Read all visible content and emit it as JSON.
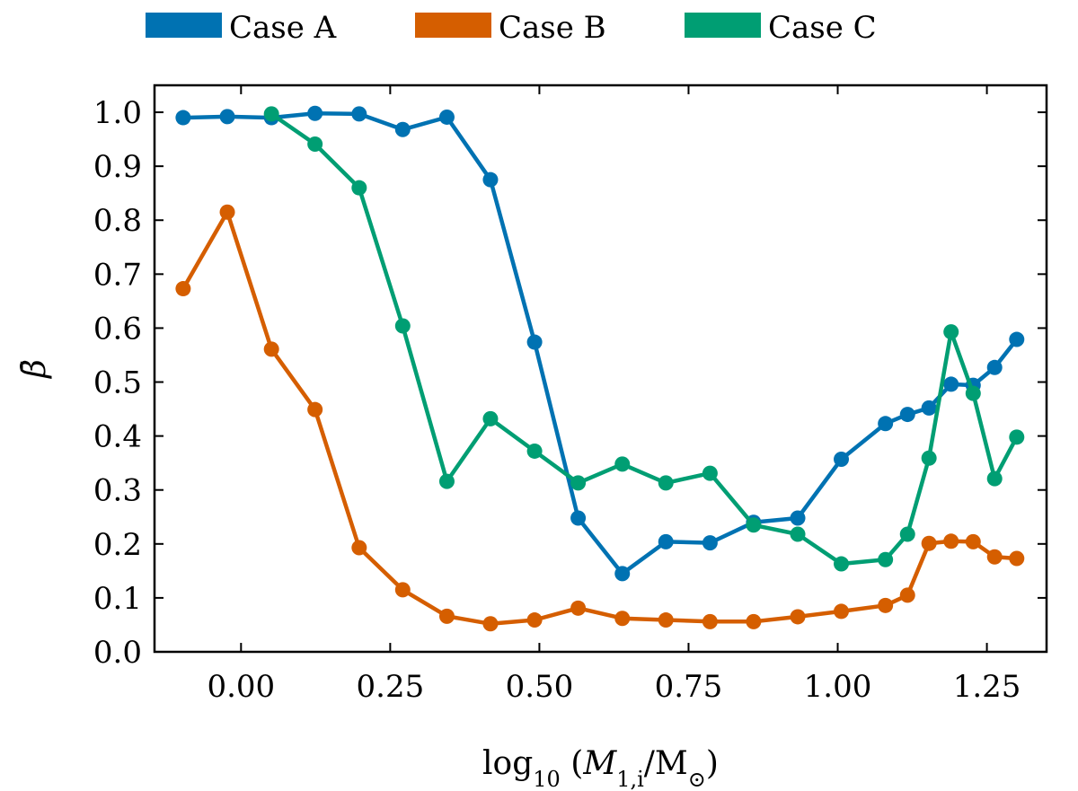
{
  "chart_data": {
    "type": "line",
    "title": "",
    "xlabel": "log10 (M1,i/M⊙)",
    "ylabel": "β̄",
    "xlim": [
      -0.145,
      1.35
    ],
    "ylim": [
      0.0,
      1.05
    ],
    "xticks": [
      0.0,
      0.25,
      0.5,
      0.75,
      1.0,
      1.25
    ],
    "xtick_labels": [
      "0.00",
      "0.25",
      "0.50",
      "0.75",
      "1.00",
      "1.25"
    ],
    "yticks": [
      0.0,
      0.1,
      0.2,
      0.3,
      0.4,
      0.5,
      0.6,
      0.7,
      0.8,
      0.9,
      1.0
    ],
    "ytick_labels": [
      "0.0",
      "0.1",
      "0.2",
      "0.3",
      "0.4",
      "0.5",
      "0.6",
      "0.7",
      "0.8",
      "0.9",
      "1.0"
    ],
    "grid": false,
    "legend": {
      "placement": "top-center-outside",
      "columns": 3
    },
    "series": [
      {
        "name": "Case A",
        "color": "#0072b2",
        "x": [
          -0.097,
          -0.023,
          0.051,
          0.124,
          0.198,
          0.271,
          0.345,
          0.418,
          0.492,
          0.565,
          0.639,
          0.712,
          0.786,
          0.859,
          0.933,
          1.006,
          1.08,
          1.117,
          1.153,
          1.19,
          1.227,
          1.263,
          1.3
        ],
        "y": [
          0.99,
          0.992,
          0.99,
          0.998,
          0.997,
          0.968,
          0.991,
          0.875,
          0.574,
          0.248,
          0.145,
          0.204,
          0.202,
          0.24,
          0.248,
          0.357,
          0.423,
          0.44,
          0.452,
          0.496,
          0.494,
          0.527,
          0.579
        ]
      },
      {
        "name": "Case B",
        "color": "#d55e00",
        "x": [
          -0.097,
          -0.023,
          0.051,
          0.124,
          0.198,
          0.271,
          0.345,
          0.418,
          0.492,
          0.565,
          0.639,
          0.712,
          0.786,
          0.859,
          0.933,
          1.006,
          1.08,
          1.117,
          1.153,
          1.19,
          1.227,
          1.263,
          1.3
        ],
        "y": [
          0.673,
          0.815,
          0.561,
          0.449,
          0.193,
          0.115,
          0.066,
          0.052,
          0.059,
          0.081,
          0.062,
          0.059,
          0.056,
          0.056,
          0.065,
          0.075,
          0.086,
          0.105,
          0.201,
          0.205,
          0.204,
          0.176,
          0.173
        ]
      },
      {
        "name": "Case C",
        "color": "#009e73",
        "x": [
          0.051,
          0.124,
          0.198,
          0.271,
          0.345,
          0.418,
          0.492,
          0.565,
          0.639,
          0.712,
          0.786,
          0.859,
          0.933,
          1.006,
          1.08,
          1.117,
          1.153,
          1.19,
          1.227,
          1.263,
          1.3
        ],
        "y": [
          0.997,
          0.941,
          0.86,
          0.604,
          0.316,
          0.432,
          0.372,
          0.313,
          0.348,
          0.313,
          0.331,
          0.235,
          0.218,
          0.163,
          0.171,
          0.218,
          0.359,
          0.593,
          0.479,
          0.321,
          0.398
        ]
      }
    ]
  }
}
